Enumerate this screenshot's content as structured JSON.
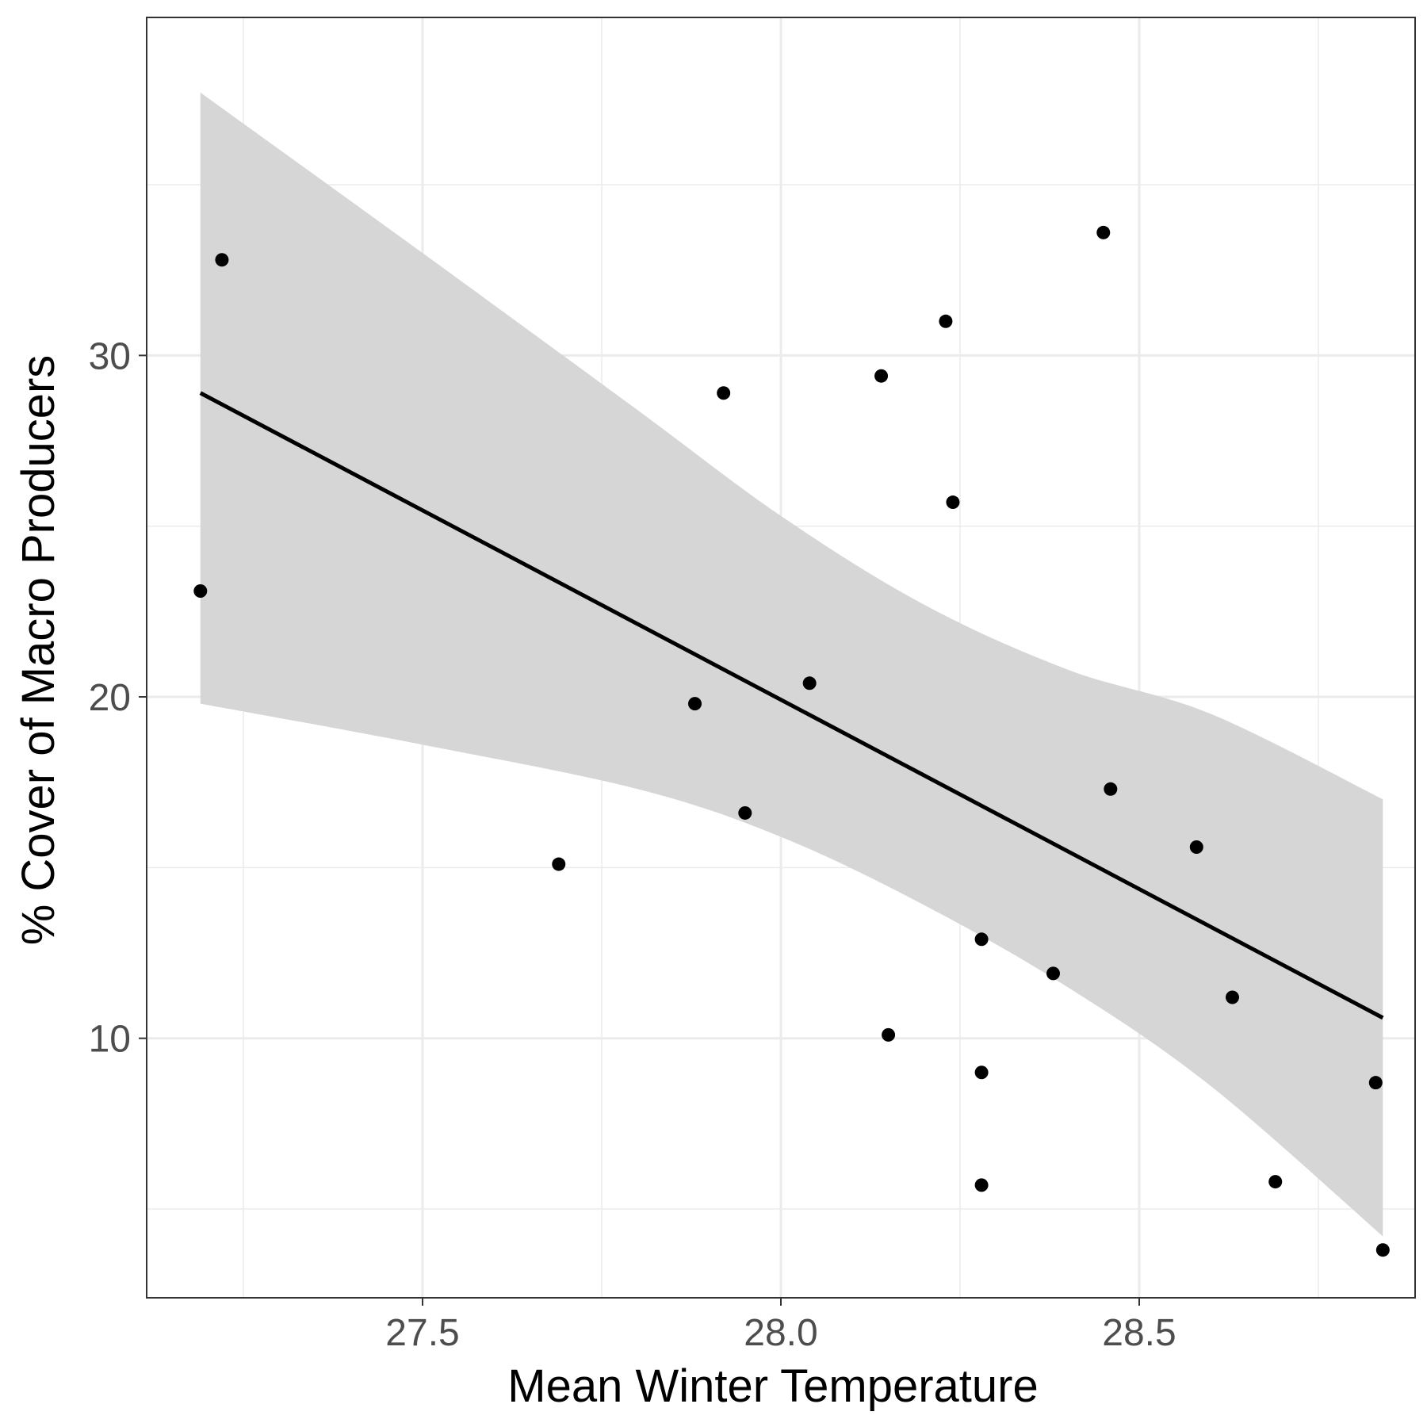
{
  "chart_data": {
    "type": "scatter",
    "title": "",
    "xlabel": "Mean Winter Temperature",
    "ylabel": "% Cover of Macro Producers",
    "xlim": [
      27.115,
      28.885
    ],
    "ylim": [
      2.4,
      39.9
    ],
    "x_ticks": [
      27.5,
      28.0,
      28.5
    ],
    "x_tick_labels": [
      "27.5",
      "28.0",
      "28.5"
    ],
    "x_minor": [
      27.25,
      27.75,
      28.25,
      28.75
    ],
    "y_ticks": [
      10,
      20,
      30
    ],
    "y_tick_labels": [
      "10",
      "20",
      "30"
    ],
    "y_minor": [
      5,
      15,
      25,
      35
    ],
    "grid": true,
    "legend": "none",
    "colors": {
      "points": "#000000",
      "fit_line": "#000000",
      "confidence_band": "#d6d6d6",
      "grid": "#ebebeb",
      "panel_border": "#333333"
    },
    "points": [
      {
        "x": 27.19,
        "y": 23.1
      },
      {
        "x": 27.22,
        "y": 32.8
      },
      {
        "x": 27.69,
        "y": 15.1
      },
      {
        "x": 27.88,
        "y": 19.8
      },
      {
        "x": 27.92,
        "y": 28.9
      },
      {
        "x": 27.95,
        "y": 16.6
      },
      {
        "x": 28.04,
        "y": 20.4
      },
      {
        "x": 28.14,
        "y": 29.4
      },
      {
        "x": 28.15,
        "y": 10.1
      },
      {
        "x": 28.23,
        "y": 31.0
      },
      {
        "x": 28.24,
        "y": 25.7
      },
      {
        "x": 28.28,
        "y": 5.7
      },
      {
        "x": 28.28,
        "y": 12.9
      },
      {
        "x": 28.28,
        "y": 9.0
      },
      {
        "x": 28.38,
        "y": 11.9
      },
      {
        "x": 28.45,
        "y": 33.6
      },
      {
        "x": 28.46,
        "y": 17.3
      },
      {
        "x": 28.58,
        "y": 15.6
      },
      {
        "x": 28.63,
        "y": 11.2
      },
      {
        "x": 28.69,
        "y": 5.8
      },
      {
        "x": 28.83,
        "y": 8.7
      },
      {
        "x": 28.84,
        "y": 3.8
      }
    ],
    "fit_line": {
      "x": [
        27.19,
        28.84
      ],
      "y": [
        28.9,
        10.6
      ]
    },
    "confidence_band": {
      "x": [
        27.19,
        27.5,
        27.8,
        28.0,
        28.2,
        28.4,
        28.6,
        28.84
      ],
      "upper": [
        37.7,
        33.0,
        28.4,
        25.3,
        22.7,
        20.8,
        19.5,
        17.0
      ],
      "lower": [
        19.8,
        18.6,
        17.3,
        15.9,
        13.9,
        11.5,
        8.6,
        4.2
      ]
    }
  }
}
